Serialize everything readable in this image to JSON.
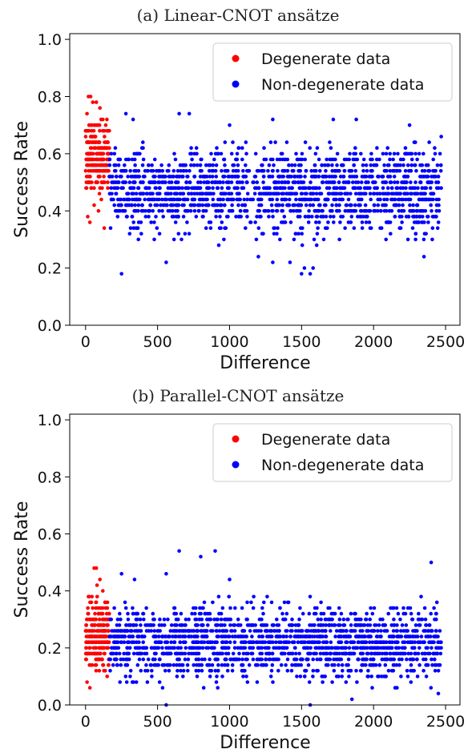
{
  "chart_data": [
    {
      "type": "scatter",
      "title": "(a) Linear-CNOT ansätze",
      "xlabel": "Difference",
      "ylabel": "Success Rate",
      "xlim": [
        -110,
        2600
      ],
      "ylim": [
        0.0,
        1.02
      ],
      "xticks": [
        "0",
        "500",
        "1000",
        "1500",
        "2000",
        "2500"
      ],
      "yticks": [
        "0.0",
        "0.2",
        "0.4",
        "0.6",
        "0.8",
        "1.0"
      ],
      "grid": false,
      "legend_position": "top-right",
      "series": [
        {
          "name": "Degenerate data",
          "color": "#ff0000",
          "x_range": [
            0,
            165
          ],
          "y_range": [
            0.34,
            0.8
          ],
          "points": [
            [
              20,
              0.8
            ],
            [
              35,
              0.8
            ],
            [
              50,
              0.78
            ],
            [
              75,
              0.78
            ],
            [
              100,
              0.76
            ],
            [
              10,
              0.74
            ],
            [
              120,
              0.72
            ],
            [
              140,
              0.7
            ],
            [
              160,
              0.68
            ],
            [
              15,
              0.38
            ],
            [
              30,
              0.36
            ],
            [
              130,
              0.34
            ],
            [
              90,
              0.4
            ],
            [
              60,
              0.42
            ],
            [
              110,
              0.44
            ]
          ]
        },
        {
          "name": "Non-degenerate data",
          "color": "#0000ff",
          "x_range": [
            165,
            2470
          ],
          "y_range": [
            0.18,
            0.74
          ],
          "points": [
            [
              250,
              0.18
            ],
            [
              1500,
              0.18
            ],
            [
              1560,
              0.18
            ],
            [
              1520,
              0.2
            ],
            [
              1580,
              0.2
            ],
            [
              1420,
              0.22
            ],
            [
              1300,
              0.22
            ],
            [
              2350,
              0.24
            ],
            [
              1200,
              0.24
            ],
            [
              560,
              0.22
            ],
            [
              280,
              0.74
            ],
            [
              650,
              0.74
            ],
            [
              720,
              0.74
            ],
            [
              1300,
              0.72
            ],
            [
              1720,
              0.72
            ],
            [
              1880,
              0.72
            ],
            [
              2250,
              0.7
            ],
            [
              1000,
              0.7
            ],
            [
              330,
              0.72
            ],
            [
              2470,
              0.66
            ]
          ]
        }
      ]
    },
    {
      "type": "scatter",
      "title": "(b) Parallel-CNOT ansätze",
      "xlabel": "Difference",
      "ylabel": "Success Rate",
      "xlim": [
        -110,
        2600
      ],
      "ylim": [
        0.0,
        1.02
      ],
      "xticks": [
        "0",
        "500",
        "1000",
        "1500",
        "2000",
        "2500"
      ],
      "yticks": [
        "0.0",
        "0.2",
        "0.4",
        "0.6",
        "0.8",
        "1.0"
      ],
      "grid": false,
      "legend_position": "top-right",
      "series": [
        {
          "name": "Degenerate data",
          "color": "#ff0000",
          "x_range": [
            0,
            165
          ],
          "y_range": [
            0.06,
            0.48
          ],
          "points": [
            [
              60,
              0.48
            ],
            [
              75,
              0.48
            ],
            [
              100,
              0.44
            ],
            [
              80,
              0.42
            ],
            [
              120,
              0.4
            ],
            [
              20,
              0.38
            ],
            [
              40,
              0.36
            ],
            [
              140,
              0.34
            ],
            [
              10,
              0.08
            ],
            [
              30,
              0.06
            ],
            [
              150,
              0.1
            ]
          ]
        },
        {
          "name": "Non-degenerate data",
          "color": "#0000ff",
          "x_range": [
            165,
            2470
          ],
          "y_range": [
            0.0,
            0.54
          ],
          "points": [
            [
              650,
              0.54
            ],
            [
              900,
              0.54
            ],
            [
              800,
              0.52
            ],
            [
              2400,
              0.5
            ],
            [
              560,
              0.46
            ],
            [
              250,
              0.46
            ],
            [
              340,
              0.44
            ],
            [
              1000,
              0.44
            ],
            [
              2330,
              0.38
            ],
            [
              2440,
              0.36
            ],
            [
              1560,
              0.0
            ],
            [
              2450,
              0.04
            ],
            [
              1850,
              0.02
            ],
            [
              2150,
              0.06
            ],
            [
              560,
              0.0
            ]
          ]
        }
      ]
    }
  ]
}
